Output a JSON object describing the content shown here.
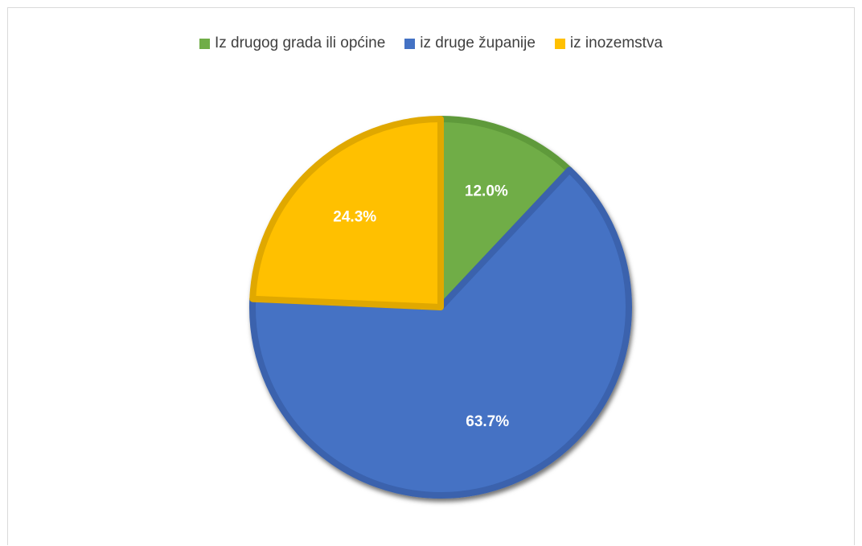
{
  "chart_data": {
    "type": "pie",
    "title": "",
    "legend_position": "top",
    "slices": [
      {
        "label": "Iz drugog grada ili općine",
        "value": 12.0,
        "display": "12.0%",
        "color": "#70ad47",
        "edge": "#5f9a3a"
      },
      {
        "label": "iz druge županije",
        "value": 63.7,
        "display": "63.7%",
        "color": "#4472c4",
        "edge": "#3a62ad"
      },
      {
        "label": "iz inozemstva",
        "value": 24.3,
        "display": "24.3%",
        "color": "#ffc000",
        "edge": "#e0a800"
      }
    ]
  }
}
